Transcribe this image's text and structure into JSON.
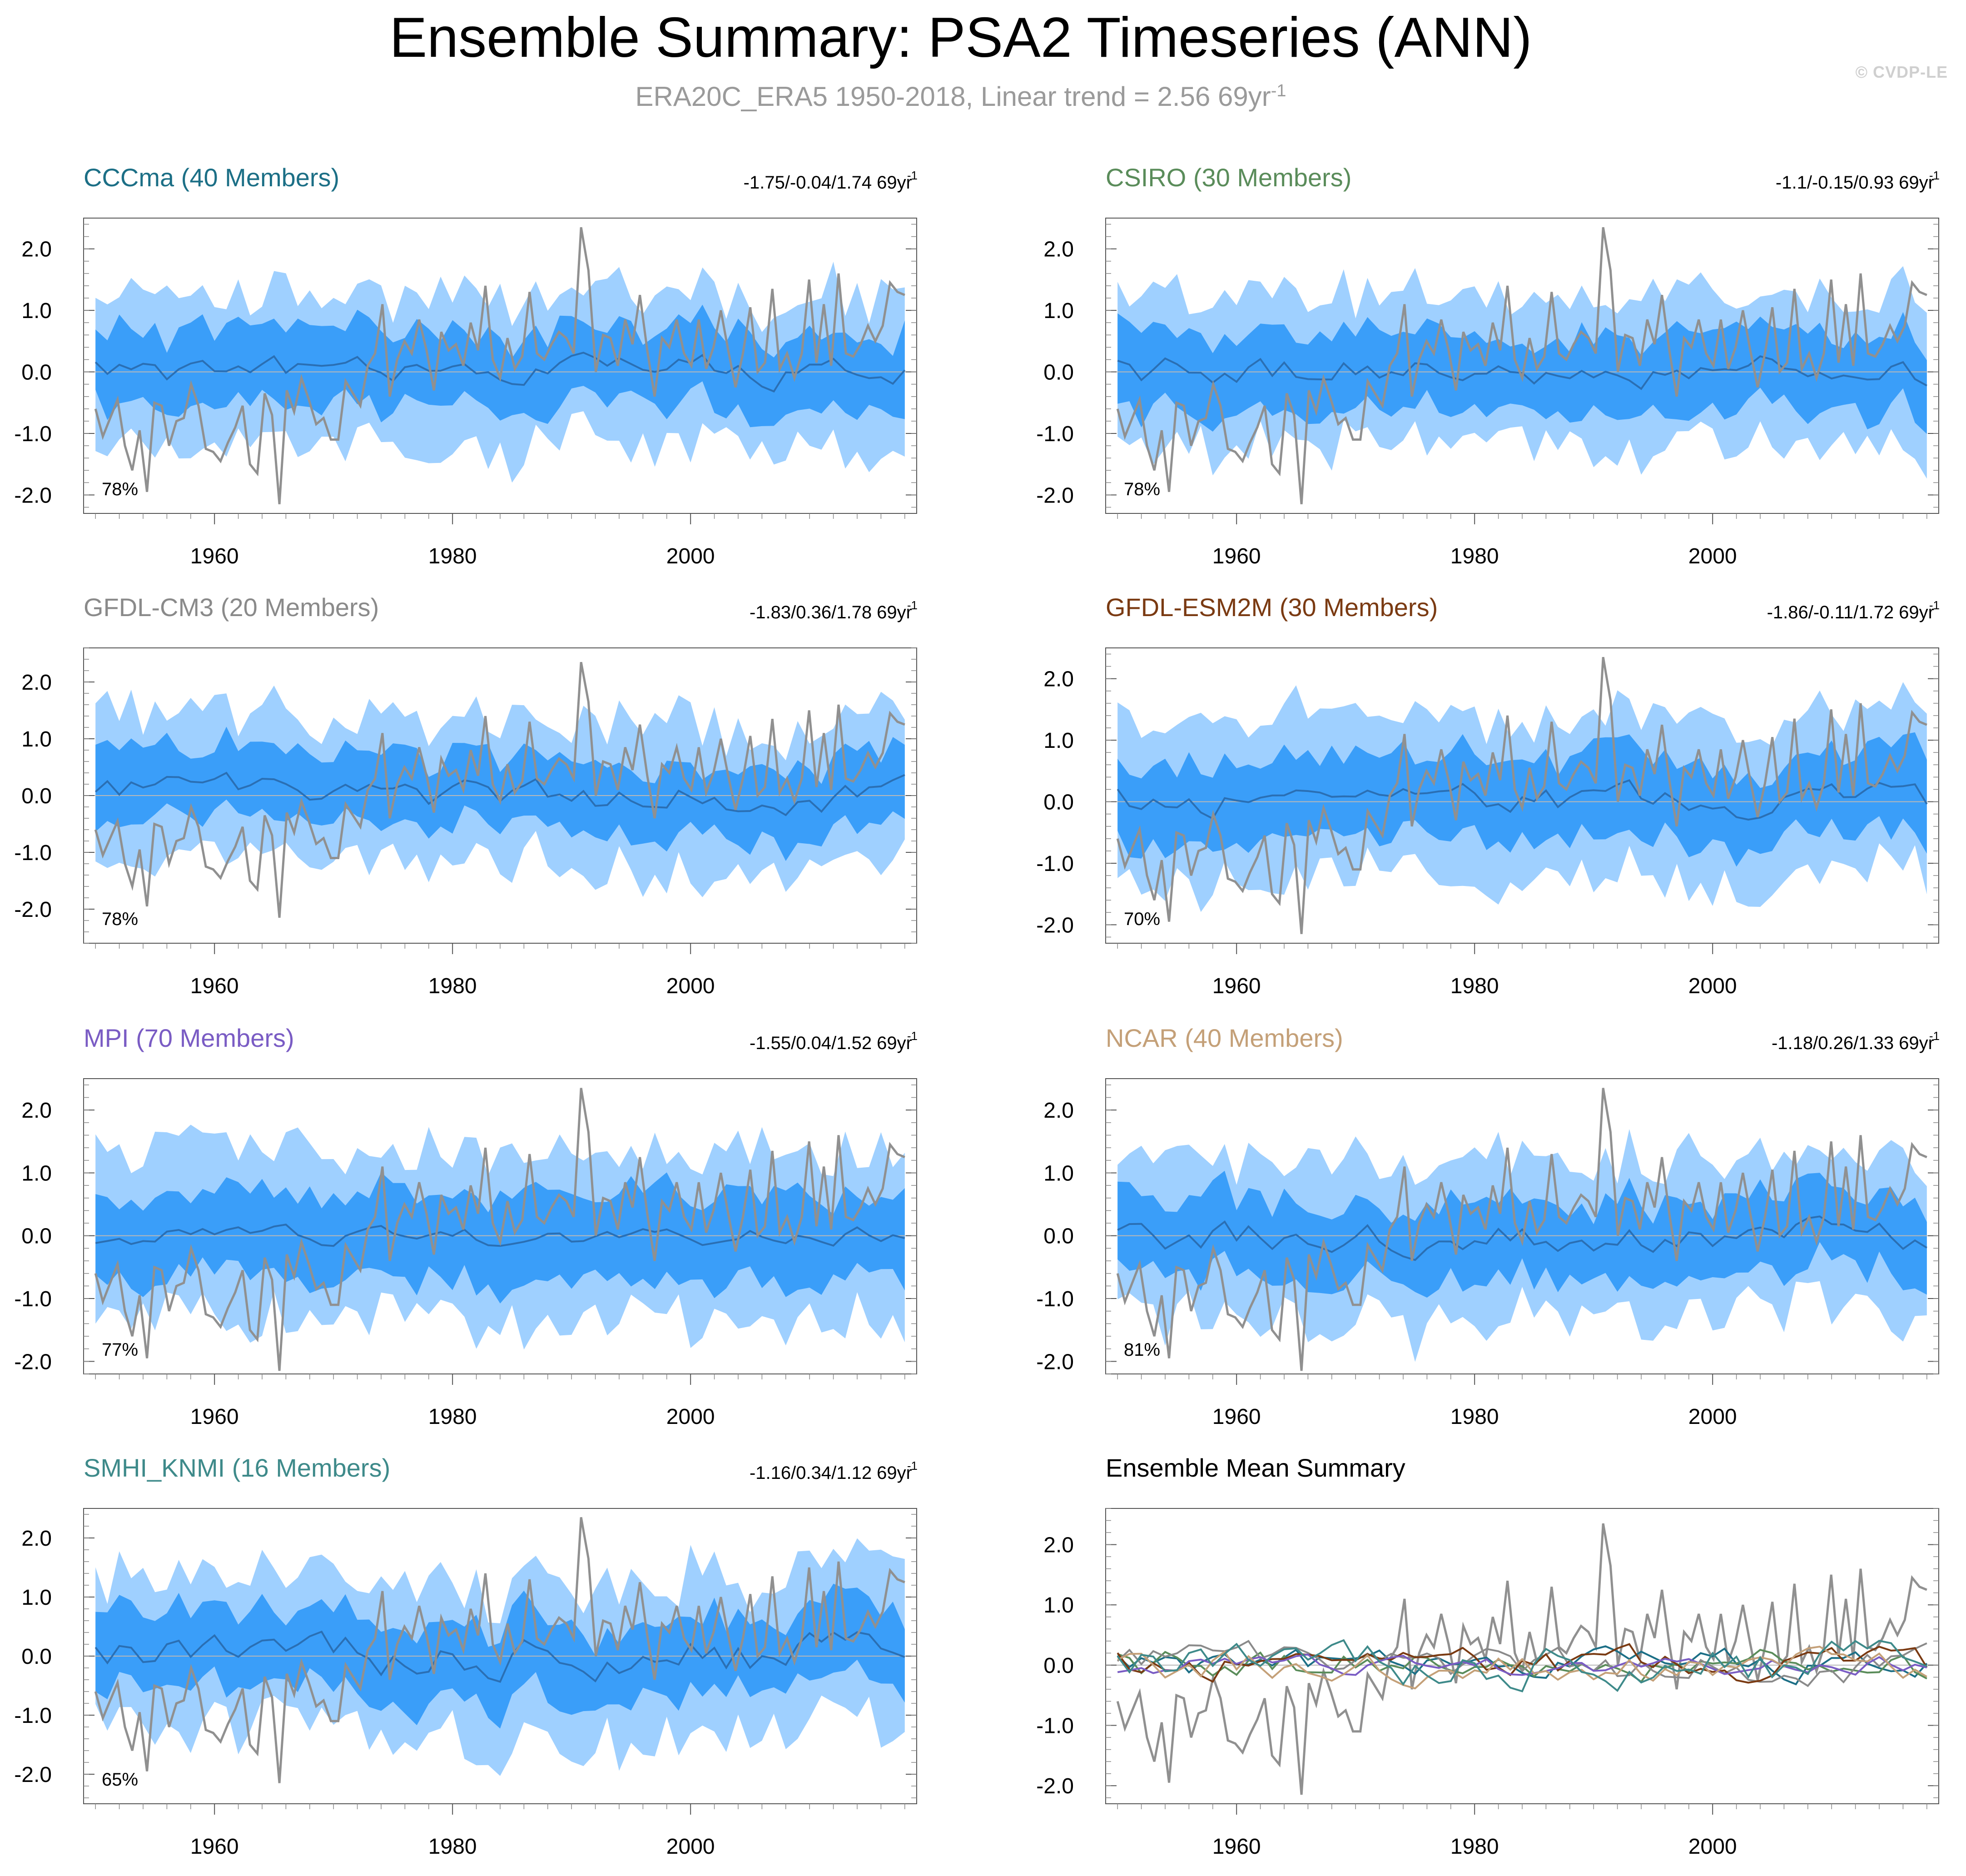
{
  "title": "Ensemble Summary: PSA2 Timeseries (ANN)",
  "subtitle": {
    "text": "ERA20C_ERA5 1950-2018, Linear trend = 2.56 69yr",
    "exponent": "-1"
  },
  "watermark": "© CVDP-LE",
  "colors": {
    "outer_band": "#9fd0ff",
    "inner_band": "#3a9ef9",
    "ensemble_mean": "#2a6fb4",
    "observations": "#909090",
    "zero_line": "#b8b8b8"
  },
  "chart_data": [
    {
      "type": "area",
      "title": "CCCma (40 Members)",
      "title_color": "#1c6f86",
      "stats": "-1.75/-0.04/1.74 69yr",
      "stats_exponent": "-1",
      "percent": "78%",
      "xlim": [
        1949,
        2019
      ],
      "ylim": [
        -2.3,
        2.5
      ],
      "xticks": [
        "1960",
        "1980",
        "2000"
      ],
      "yticks": [
        "2.0",
        "1.0",
        "0.0",
        "-1.0",
        "-2.0"
      ],
      "seed": 11,
      "mean_scale": 0.13,
      "inner_width": 0.62,
      "outer_width": 1.25
    },
    {
      "type": "area",
      "title": "CSIRO (30 Members)",
      "title_color": "#5a8c5a",
      "stats": "-1.1/-0.15/0.93 69yr",
      "stats_exponent": "-1",
      "percent": "78%",
      "xlim": [
        1949,
        2019
      ],
      "ylim": [
        -2.3,
        2.5
      ],
      "xticks": [
        "1960",
        "1980",
        "2000"
      ],
      "yticks": [
        "2.0",
        "1.0",
        "0.0",
        "-1.0",
        "-2.0"
      ],
      "seed": 23,
      "mean_scale": 0.14,
      "inner_width": 0.62,
      "outer_width": 1.22
    },
    {
      "type": "area",
      "title": "GFDL-CM3 (20 Members)",
      "title_color": "#8a8a8a",
      "stats": "-1.83/0.36/1.78 69yr",
      "stats_exponent": "-1",
      "percent": "78%",
      "xlim": [
        1949,
        2019
      ],
      "ylim": [
        -2.6,
        2.6
      ],
      "xticks": [
        "1960",
        "1980",
        "2000"
      ],
      "yticks": [
        "2.0",
        "1.0",
        "0.0",
        "-1.0",
        "-2.0"
      ],
      "seed": 37,
      "mean_scale": 0.16,
      "inner_width": 0.62,
      "outer_width": 1.3
    },
    {
      "type": "area",
      "title": "GFDL-ESM2M (30 Members)",
      "title_color": "#7a3a12",
      "stats": "-1.86/-0.11/1.72 69yr",
      "stats_exponent": "-1",
      "percent": "70%",
      "xlim": [
        1949,
        2019
      ],
      "ylim": [
        -2.3,
        2.5
      ],
      "xticks": [
        "1960",
        "1980",
        "2000"
      ],
      "yticks": [
        "2.0",
        "1.0",
        "0.0",
        "-1.0",
        "-2.0"
      ],
      "seed": 41,
      "mean_scale": 0.14,
      "inner_width": 0.65,
      "outer_width": 1.32
    },
    {
      "type": "area",
      "title": "MPI (70 Members)",
      "title_color": "#7a5cc4",
      "stats": "-1.55/0.04/1.52 69yr",
      "stats_exponent": "-1",
      "percent": "77%",
      "xlim": [
        1949,
        2019
      ],
      "ylim": [
        -2.2,
        2.5
      ],
      "xticks": [
        "1960",
        "1980",
        "2000"
      ],
      "yticks": [
        "2.0",
        "1.0",
        "0.0",
        "-1.0",
        "-2.0"
      ],
      "seed": 53,
      "mean_scale": 0.08,
      "inner_width": 0.68,
      "outer_width": 1.35
    },
    {
      "type": "area",
      "title": "NCAR (40 Members)",
      "title_color": "#c4a078",
      "stats": "-1.18/0.26/1.33 69yr",
      "stats_exponent": "-1",
      "percent": "81%",
      "xlim": [
        1949,
        2019
      ],
      "ylim": [
        -2.2,
        2.5
      ],
      "xticks": [
        "1960",
        "1980",
        "2000"
      ],
      "yticks": [
        "2.0",
        "1.0",
        "0.0",
        "-1.0",
        "-2.0"
      ],
      "seed": 67,
      "mean_scale": 0.14,
      "inner_width": 0.62,
      "outer_width": 1.25
    },
    {
      "type": "area",
      "title": "SMHI_KNMI (16 Members)",
      "title_color": "#3e8a8a",
      "stats": "-1.16/0.34/1.12 69yr",
      "stats_exponent": "-1",
      "percent": "65%",
      "xlim": [
        1949,
        2019
      ],
      "ylim": [
        -2.5,
        2.5
      ],
      "xticks": [
        "1960",
        "1980",
        "2000"
      ],
      "yticks": [
        "2.0",
        "1.0",
        "0.0",
        "-1.0",
        "-2.0"
      ],
      "seed": 79,
      "mean_scale": 0.2,
      "inner_width": 0.65,
      "outer_width": 1.3
    },
    {
      "type": "line",
      "title": "Ensemble Mean Summary",
      "title_color": "#000000",
      "xlim": [
        1949,
        2019
      ],
      "ylim": [
        -2.3,
        2.6
      ],
      "xticks": [
        "1960",
        "1980",
        "2000"
      ],
      "yticks": [
        "2.0",
        "1.0",
        "0.0",
        "-1.0",
        "-2.0"
      ],
      "series_colors": [
        "#1c6f86",
        "#5a8c5a",
        "#8a8a8a",
        "#7a3a12",
        "#7a5cc4",
        "#c4a078",
        "#3e8a8a"
      ]
    }
  ],
  "observations": {
    "name": "ERA20C_ERA5",
    "years": [
      1950,
      2018
    ],
    "values": [
      -0.6,
      -1.05,
      -0.75,
      -0.45,
      -1.2,
      -1.6,
      -0.95,
      -1.95,
      -0.5,
      -0.55,
      -1.2,
      -0.8,
      -0.75,
      -0.2,
      -0.55,
      -1.25,
      -1.3,
      -1.45,
      -1.15,
      -0.9,
      -0.55,
      -1.5,
      -1.65,
      -0.35,
      -0.7,
      -2.15,
      -0.3,
      -0.65,
      -0.1,
      -0.45,
      -0.85,
      -0.75,
      -1.1,
      -1.1,
      -0.15,
      -0.35,
      -0.55,
      0.1,
      0.3,
      1.1,
      -0.4,
      0.2,
      0.5,
      0.3,
      0.85,
      0.35,
      -0.3,
      0.65,
      0.35,
      0.45,
      0.1,
      0.8,
      0.35,
      1.4,
      0.2,
      -0.1,
      0.55,
      0.05,
      0.25,
      1.3,
      0.3,
      0.2,
      0.45,
      0.65,
      0.55,
      0.3,
      2.35,
      1.65,
      0.0,
      0.6,
      0.55,
      0.1,
      0.85,
      0.45,
      1.25,
      0.35,
      -0.4,
      0.55,
      0.4,
      0.85,
      0.3,
      0.1,
      0.85,
      0.05,
      0.4,
      1.0,
      0.35,
      -0.25,
      0.3,
      1.05,
      0.0,
      0.15,
      1.35,
      0.05,
      0.3,
      -0.1,
      0.3,
      1.5,
      0.15,
      1.1,
      0.1,
      1.6,
      0.3,
      0.25,
      0.45,
      0.75,
      0.5,
      0.75,
      1.45,
      1.3,
      1.25
    ]
  }
}
